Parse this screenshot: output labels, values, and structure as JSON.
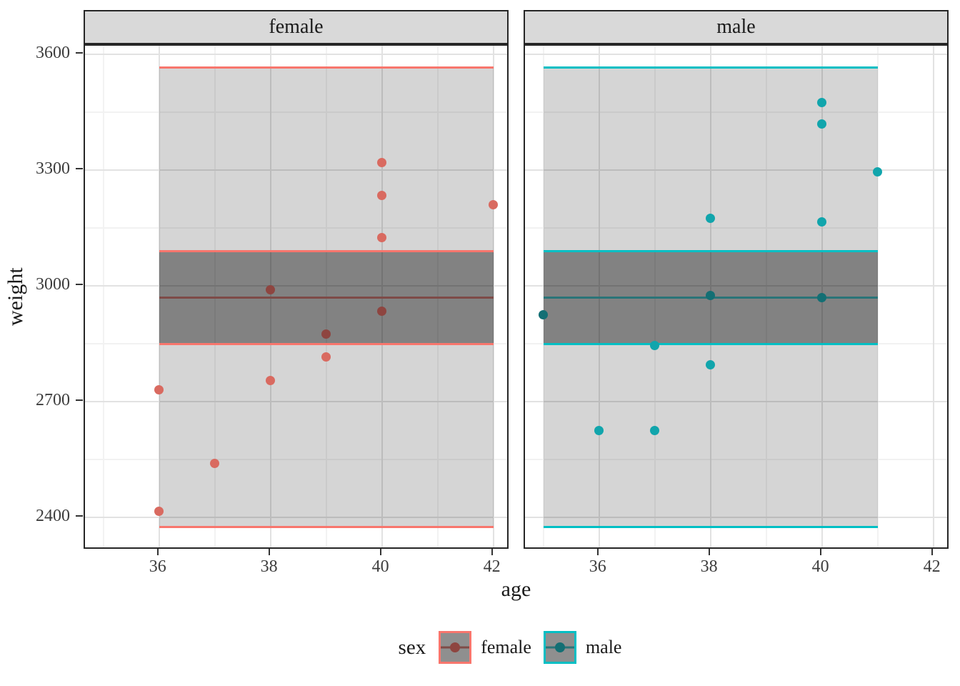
{
  "chart_data": {
    "type": "scatter",
    "title": "",
    "xlabel": "age",
    "ylabel": "weight",
    "facets": [
      "female",
      "male"
    ],
    "x_ticks": [
      36,
      38,
      40,
      42
    ],
    "x_minor": [
      35,
      37,
      39,
      41
    ],
    "y_ticks": [
      3600,
      3300,
      3000,
      2700,
      2400
    ],
    "y_minor": [
      3450,
      3150,
      2850,
      2550
    ],
    "x_domain": [
      34.67,
      42.3
    ],
    "y_domain": [
      2315,
      3622
    ],
    "bands": {
      "outer_low": 2375,
      "outer_high": 3565,
      "inner_low": 2850,
      "inner_high": 3090,
      "mean": 2970
    },
    "series": [
      {
        "name": "female",
        "ribbon_x": [
          36,
          42
        ],
        "points": [
          [
            36,
            2730
          ],
          [
            36,
            2415
          ],
          [
            37,
            2540
          ],
          [
            38,
            2990
          ],
          [
            38,
            2755
          ],
          [
            39,
            2875
          ],
          [
            39,
            2815
          ],
          [
            40,
            3320
          ],
          [
            40,
            3235
          ],
          [
            40,
            3125
          ],
          [
            40,
            2935
          ],
          [
            42,
            3210
          ]
        ]
      },
      {
        "name": "male",
        "ribbon_x": [
          35,
          41
        ],
        "points": [
          [
            35,
            2925
          ],
          [
            36,
            2625
          ],
          [
            37,
            2625
          ],
          [
            37,
            2845
          ],
          [
            38,
            3175
          ],
          [
            38,
            2975
          ],
          [
            38,
            2795
          ],
          [
            40,
            3475
          ],
          [
            40,
            3420
          ],
          [
            40,
            3165
          ],
          [
            40,
            2970
          ],
          [
            41,
            3295
          ]
        ]
      }
    ],
    "legend": {
      "title": "sex",
      "position": "bottom",
      "entries": [
        "female",
        "male"
      ]
    }
  },
  "palette": {
    "female": {
      "accent": "#F8766D",
      "point": "#D96A60",
      "point_dark": "#8E4540",
      "mean_line": "#7E4B47"
    },
    "male": {
      "accent": "#00BFC4",
      "point": "#11A5AC",
      "point_dark": "#136F74",
      "mean_line": "#2A7478"
    }
  },
  "theme": {
    "strip_bg": "#D9D9D9",
    "panel_border": "#262626",
    "grid_major": "#E2E2E2",
    "grid_minor": "#F2F2F2",
    "outer_ribbon_fill": "rgba(0,0,0,0.165)",
    "inner_ribbon_fill": "rgba(0,0,0,0.39)",
    "tick_color": "#333333",
    "tick_label_color": "#3D3D3D",
    "text_color": "#1A1A1A",
    "legend_key_bg": "#8F8F8F"
  }
}
